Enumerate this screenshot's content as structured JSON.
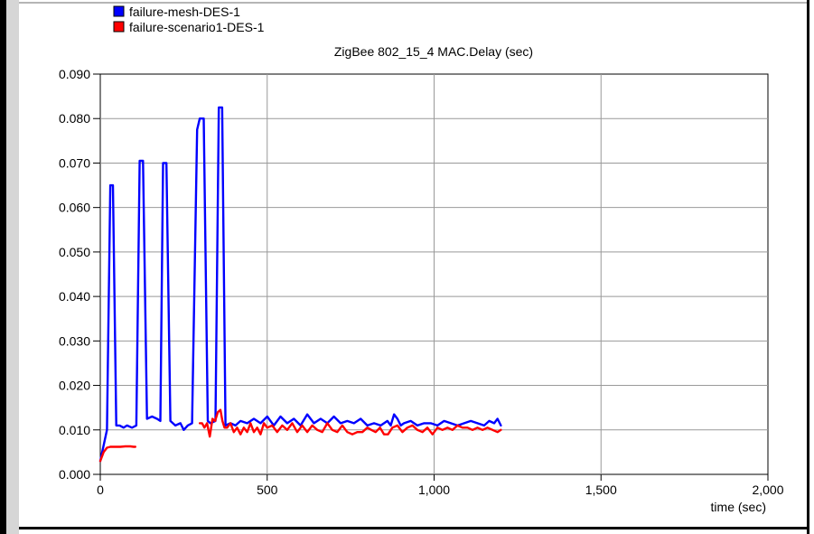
{
  "chart_data": {
    "type": "line",
    "title": "ZigBee 802_15_4 MAC.Delay (sec)",
    "xlabel": "time (sec)",
    "ylabel": "",
    "xlim": [
      0,
      2000
    ],
    "ylim": [
      0,
      0.09
    ],
    "x_ticks": [
      0,
      500,
      1000,
      1500,
      2000
    ],
    "x_tick_labels": [
      "0",
      "500",
      "1,000",
      "1,500",
      "2,000"
    ],
    "y_ticks": [
      0.0,
      0.01,
      0.02,
      0.03,
      0.04,
      0.05,
      0.06,
      0.07,
      0.08,
      0.09
    ],
    "y_tick_labels": [
      "0.000",
      "0.010",
      "0.020",
      "0.030",
      "0.040",
      "0.050",
      "0.060",
      "0.070",
      "0.080",
      "0.090"
    ],
    "grid": true,
    "legend_position": "top-left",
    "series": [
      {
        "name": "failure-mesh-DES-1",
        "color": "#0000ff",
        "x": [
          0,
          20,
          30,
          38,
          48,
          58,
          70,
          80,
          95,
          108,
          118,
          128,
          140,
          155,
          170,
          180,
          188,
          198,
          210,
          225,
          240,
          250,
          262,
          275,
          290,
          298,
          310,
          322,
          330,
          345,
          355,
          365,
          375,
          390,
          405,
          420,
          440,
          460,
          480,
          500,
          520,
          540,
          560,
          580,
          600,
          620,
          640,
          660,
          680,
          700,
          720,
          740,
          760,
          780,
          800,
          820,
          840,
          860,
          870,
          880,
          890,
          900,
          910,
          930,
          950,
          970,
          990,
          1010,
          1030,
          1050,
          1070,
          1090,
          1110,
          1130,
          1150,
          1165,
          1180,
          1190,
          1200
        ],
        "y": [
          0.003,
          0.01,
          0.065,
          0.065,
          0.011,
          0.011,
          0.0105,
          0.011,
          0.0105,
          0.011,
          0.0705,
          0.0705,
          0.0125,
          0.013,
          0.0125,
          0.012,
          0.07,
          0.07,
          0.012,
          0.011,
          0.0115,
          0.01,
          0.011,
          0.0115,
          0.0775,
          0.08,
          0.08,
          0.012,
          0.0115,
          0.012,
          0.0825,
          0.0825,
          0.011,
          0.0115,
          0.011,
          0.012,
          0.0115,
          0.0125,
          0.0115,
          0.013,
          0.011,
          0.013,
          0.0115,
          0.0125,
          0.011,
          0.0135,
          0.0115,
          0.0125,
          0.0115,
          0.013,
          0.0115,
          0.012,
          0.0115,
          0.0125,
          0.011,
          0.0115,
          0.011,
          0.012,
          0.011,
          0.0135,
          0.0125,
          0.011,
          0.0115,
          0.012,
          0.011,
          0.0115,
          0.0115,
          0.011,
          0.012,
          0.0115,
          0.011,
          0.0115,
          0.012,
          0.0115,
          0.011,
          0.012,
          0.0115,
          0.0125,
          0.011
        ]
      },
      {
        "name": "failure-scenario1-DES-1",
        "color": "#ff0000",
        "segments": [
          {
            "x": [
              0,
              10,
              20,
              30,
              45,
              60,
              75,
              90,
              100,
              105
            ],
            "y": [
              0.003,
              0.005,
              0.006,
              0.0062,
              0.0062,
              0.0062,
              0.0063,
              0.0063,
              0.0062,
              0.0062
            ]
          },
          {
            "x": [
              298,
              305,
              312,
              320,
              328,
              336,
              344,
              352,
              360,
              366,
              372,
              380,
              390,
              400,
              410,
              420,
              430,
              440,
              450,
              460,
              470,
              480,
              490,
              500,
              515,
              530,
              545,
              560,
              575,
              590,
              605,
              620,
              635,
              650,
              665,
              680,
              695,
              710,
              725,
              740,
              755,
              770,
              785,
              800,
              812,
              825,
              838,
              850,
              862,
              875,
              890,
              905,
              920,
              935,
              950,
              965,
              980,
              995,
              1010,
              1025,
              1040,
              1055,
              1070,
              1085,
              1100,
              1115,
              1130,
              1145,
              1160,
              1175,
              1190,
              1200
            ],
            "y": [
              0.0115,
              0.0115,
              0.0105,
              0.0115,
              0.0085,
              0.0125,
              0.012,
              0.014,
              0.0145,
              0.012,
              0.0105,
              0.0105,
              0.0115,
              0.0095,
              0.0105,
              0.009,
              0.0105,
              0.0095,
              0.0115,
              0.0095,
              0.0105,
              0.009,
              0.0115,
              0.0105,
              0.011,
              0.0095,
              0.011,
              0.01,
              0.0115,
              0.0095,
              0.011,
              0.0095,
              0.011,
              0.01,
              0.0095,
              0.0115,
              0.01,
              0.0095,
              0.011,
              0.0095,
              0.009,
              0.0095,
              0.0095,
              0.0105,
              0.01,
              0.0095,
              0.0105,
              0.009,
              0.009,
              0.0105,
              0.011,
              0.0095,
              0.0105,
              0.011,
              0.01,
              0.0095,
              0.0105,
              0.009,
              0.0105,
              0.01,
              0.0105,
              0.01,
              0.011,
              0.0105,
              0.0105,
              0.01,
              0.0105,
              0.01,
              0.0105,
              0.01,
              0.0095,
              0.01
            ]
          }
        ]
      }
    ]
  }
}
